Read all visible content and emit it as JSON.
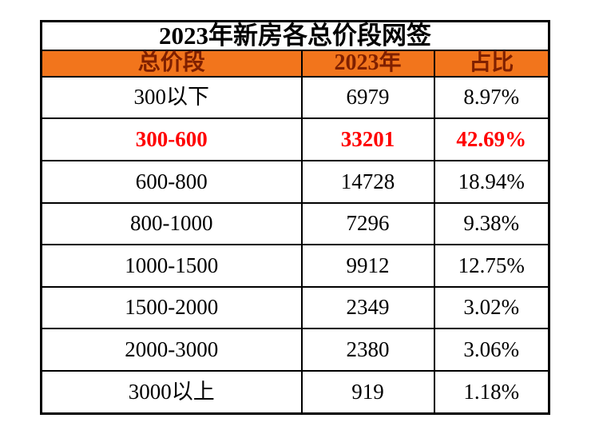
{
  "colors": {
    "header_bg": "#F2751C",
    "header_text": "#7F2000",
    "highlight_text": "#FF0000",
    "border": "#000000",
    "background": "#FFFFFF"
  },
  "chart_data": {
    "type": "table",
    "title": "2023年新房各总价段网签",
    "columns": [
      "总价段",
      "2023年",
      "占比"
    ],
    "rows": [
      [
        "300以下",
        "6979",
        "8.97%"
      ],
      [
        "300-600",
        "33201",
        "42.69%"
      ],
      [
        "600-800",
        "14728",
        "18.94%"
      ],
      [
        "800-1000",
        "7296",
        "9.38%"
      ],
      [
        "1000-1500",
        "9912",
        "12.75%"
      ],
      [
        "1500-2000",
        "2349",
        "3.02%"
      ],
      [
        "2000-3000",
        "2380",
        "3.06%"
      ],
      [
        "3000以上",
        "919",
        "1.18%"
      ]
    ],
    "highlight_row_index": 1,
    "notes": "Highlighted row (300-600) rendered in red; header row orange with dark-red text; grid on; serif typeface"
  }
}
